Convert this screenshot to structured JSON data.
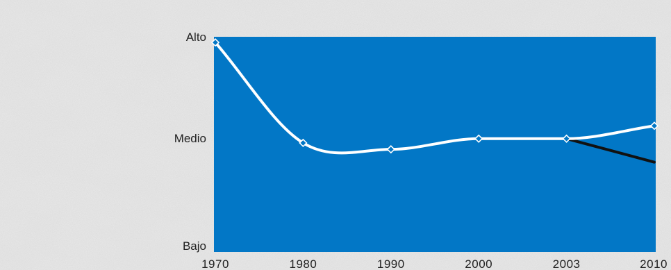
{
  "chart_data": {
    "type": "line",
    "title": "",
    "xlabel": "",
    "ylabel": "",
    "x_categories": [
      "1970",
      "1980",
      "1990",
      "2000",
      "2003",
      "2010"
    ],
    "y_ticks": [
      "Bajo",
      "Medio",
      "Alto"
    ],
    "ylim": [
      0,
      1
    ],
    "grid": false,
    "series": [
      {
        "points": [
          {
            "x": "1970",
            "y": 0.98
          },
          {
            "x": "1980",
            "y": 0.51
          },
          {
            "x": "1990",
            "y": 0.48
          },
          {
            "x": "2000",
            "y": 0.53
          },
          {
            "x": "2003",
            "y": 0.53
          },
          {
            "x": "2010",
            "y": 0.59
          }
        ],
        "color": "#ffffff"
      },
      {
        "points": [
          {
            "x": "2003",
            "y": 0.53
          },
          {
            "x": "2010",
            "y": 0.42
          }
        ],
        "color": "#111111"
      }
    ],
    "colors": {
      "plot_background": "#0277c6",
      "marker_fill": "#0277c6",
      "marker_stroke": "#ffffff"
    }
  }
}
